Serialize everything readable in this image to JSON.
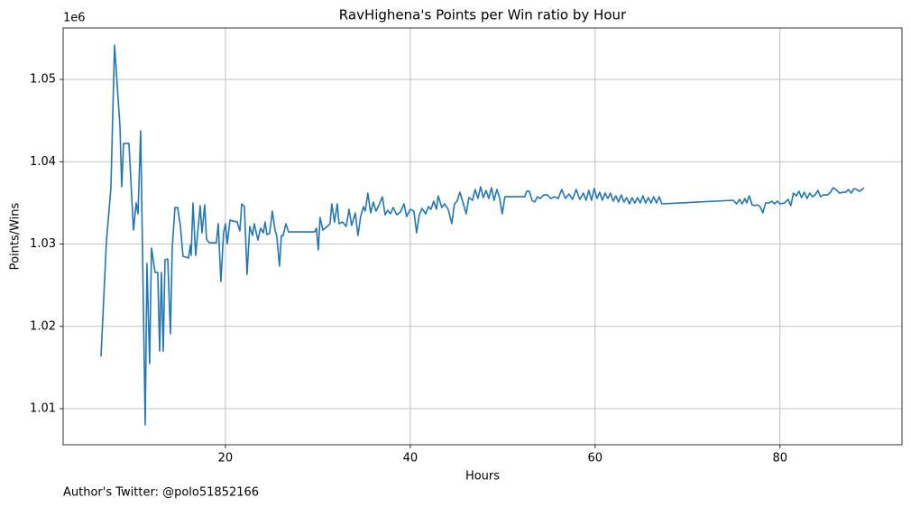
{
  "chart_data": {
    "type": "line",
    "title": "RavHighena's Points per Win ratio by Hour",
    "xlabel": "Hours",
    "ylabel": "Points/Wins",
    "y_offset_label": "1e6",
    "footnote": "Author's Twitter: @polo51852166",
    "color": "#1f77b4",
    "grid": true,
    "x": [
      6.54,
      7.12,
      7.61,
      8.0,
      8.59,
      8.78,
      8.98,
      9.56,
      10.05,
      10.34,
      10.54,
      10.83,
      11.32,
      11.51,
      11.8,
      12.0,
      12.39,
      12.68,
      12.88,
      13.07,
      13.27,
      13.46,
      13.76,
      14.05,
      14.24,
      14.54,
      14.83,
      15.12,
      15.41,
      16.0,
      16.2,
      16.29,
      16.49,
      16.78,
      17.07,
      17.27,
      17.46,
      17.76,
      17.95,
      18.24,
      19.02,
      19.22,
      19.51,
      19.8,
      20.0,
      20.2,
      20.49,
      21.27,
      21.56,
      21.76,
      22.05,
      22.34,
      22.63,
      22.93,
      23.12,
      23.51,
      23.8,
      24.1,
      24.29,
      24.49,
      24.78,
      25.07,
      25.37,
      25.56,
      25.85,
      26.05,
      26.24,
      26.54,
      26.83,
      29.66,
      29.85,
      30.05,
      30.24,
      30.54,
      31.02,
      31.32,
      31.51,
      31.8,
      32.1,
      32.29,
      32.68,
      33.07,
      33.37,
      33.66,
      34.05,
      34.34,
      34.63,
      34.93,
      35.12,
      35.41,
      35.71,
      36.0,
      36.29,
      36.59,
      36.98,
      37.27,
      37.56,
      37.85,
      38.15,
      38.54,
      38.93,
      39.32,
      39.61,
      40.0,
      40.39,
      40.68,
      40.98,
      41.27,
      41.66,
      41.95,
      42.24,
      42.54,
      42.83,
      43.02,
      43.41,
      43.71,
      44.1,
      44.49,
      44.78,
      45.07,
      45.37,
      45.66,
      46.05,
      46.34,
      46.73,
      47.02,
      47.32,
      47.61,
      47.9,
      48.2,
      48.49,
      48.78,
      49.07,
      49.37,
      49.66,
      49.95,
      50.24,
      52.39,
      52.59,
      52.88,
      53.17,
      53.46,
      53.76,
      54.05,
      54.44,
      54.83,
      55.22,
      55.61,
      56.0,
      56.39,
      56.78,
      57.17,
      57.56,
      57.95,
      58.34,
      58.73,
      59.02,
      59.32,
      59.61,
      59.9,
      60.2,
      60.49,
      60.78,
      61.07,
      61.37,
      61.66,
      61.95,
      62.24,
      62.54,
      62.83,
      63.12,
      63.41,
      63.71,
      64.0,
      64.29,
      64.59,
      64.88,
      65.17,
      65.46,
      65.76,
      66.05,
      66.34,
      66.63,
      66.93,
      67.22,
      74.93,
      75.32,
      75.61,
      75.9,
      76.2,
      76.39,
      76.68,
      76.98,
      77.27,
      77.56,
      77.85,
      78.15,
      78.44,
      78.83,
      79.12,
      79.41,
      79.71,
      80.0,
      80.49,
      80.88,
      81.17,
      81.46,
      81.76,
      82.05,
      82.34,
      82.63,
      82.93,
      83.22,
      83.51,
      83.8,
      84.1,
      84.39,
      84.68,
      85.17,
      85.46,
      85.76,
      86.15,
      86.44,
      86.83,
      87.12,
      87.41,
      87.71,
      88.0,
      88.29,
      88.59,
      88.88,
      89.07
    ],
    "values": [
      1016360,
      1030270,
      1036850,
      1054160,
      1044300,
      1036960,
      1042220,
      1042220,
      1031700,
      1034990,
      1033670,
      1043750,
      1008030,
      1027640,
      1015480,
      1029510,
      1026550,
      1026550,
      1017010,
      1026550,
      1017010,
      1028080,
      1028190,
      1019100,
      1029510,
      1034440,
      1034440,
      1032250,
      1028520,
      1028300,
      1029840,
      1028630,
      1034990,
      1028630,
      1032250,
      1034660,
      1031370,
      1034770,
      1030600,
      1030160,
      1030160,
      1032470,
      1025450,
      1031370,
      1032470,
      1030050,
      1032900,
      1032680,
      1031590,
      1034880,
      1034550,
      1026330,
      1032140,
      1031040,
      1032470,
      1030490,
      1031920,
      1031370,
      1032680,
      1031150,
      1031260,
      1034000,
      1031700,
      1030930,
      1027320,
      1031040,
      1031040,
      1032470,
      1031480,
      1031480,
      1031920,
      1029290,
      1033230,
      1031700,
      1032140,
      1032470,
      1034880,
      1032680,
      1034880,
      1032470,
      1032680,
      1032140,
      1034220,
      1032250,
      1033780,
      1031040,
      1033340,
      1034550,
      1034000,
      1036190,
      1033780,
      1035100,
      1034000,
      1034660,
      1035750,
      1033560,
      1034110,
      1033670,
      1034440,
      1033560,
      1033890,
      1034880,
      1033340,
      1034220,
      1034000,
      1031370,
      1033560,
      1034330,
      1033670,
      1034550,
      1034220,
      1035210,
      1034220,
      1035860,
      1034440,
      1034880,
      1034220,
      1032470,
      1034880,
      1035210,
      1036300,
      1035210,
      1033670,
      1035640,
      1035320,
      1036630,
      1035530,
      1036960,
      1035640,
      1036520,
      1035530,
      1036850,
      1035320,
      1036630,
      1035640,
      1033670,
      1035750,
      1035750,
      1036410,
      1036410,
      1035320,
      1035100,
      1035750,
      1035530,
      1035970,
      1035970,
      1035530,
      1035750,
      1035530,
      1036630,
      1035530,
      1036080,
      1035430,
      1036630,
      1035430,
      1036190,
      1035320,
      1036520,
      1035320,
      1036740,
      1035530,
      1036300,
      1035320,
      1036190,
      1035530,
      1036190,
      1035210,
      1035860,
      1035100,
      1035970,
      1035100,
      1035640,
      1034880,
      1035640,
      1034990,
      1035640,
      1034990,
      1035860,
      1034990,
      1035640,
      1034990,
      1035750,
      1034990,
      1035750,
      1034880,
      1035320,
      1034880,
      1035430,
      1034880,
      1035530,
      1034990,
      1035860,
      1034770,
      1034660,
      1034770,
      1034550,
      1033780,
      1034990,
      1034990,
      1035210,
      1034880,
      1035210,
      1034880,
      1034990,
      1035430,
      1034660,
      1036190,
      1035860,
      1036410,
      1035640,
      1036300,
      1035530,
      1036190,
      1035750,
      1035970,
      1036520,
      1035750,
      1035970,
      1035970,
      1036300,
      1036850,
      1036520,
      1036190,
      1036300,
      1036300,
      1036630,
      1036190,
      1036740,
      1036630,
      1036410,
      1036630,
      1036850
    ],
    "xlim": [
      2.44,
      93.2
    ],
    "xticks": [
      20,
      40,
      60,
      80
    ],
    "ylim": [
      1005620,
      1056250
    ],
    "yticks": [
      {
        "value": 1010000,
        "label": "1.01"
      },
      {
        "value": 1020000,
        "label": "1.02"
      },
      {
        "value": 1030000,
        "label": "1.03"
      },
      {
        "value": 1040000,
        "label": "1.04"
      },
      {
        "value": 1050000,
        "label": "1.05"
      }
    ]
  }
}
